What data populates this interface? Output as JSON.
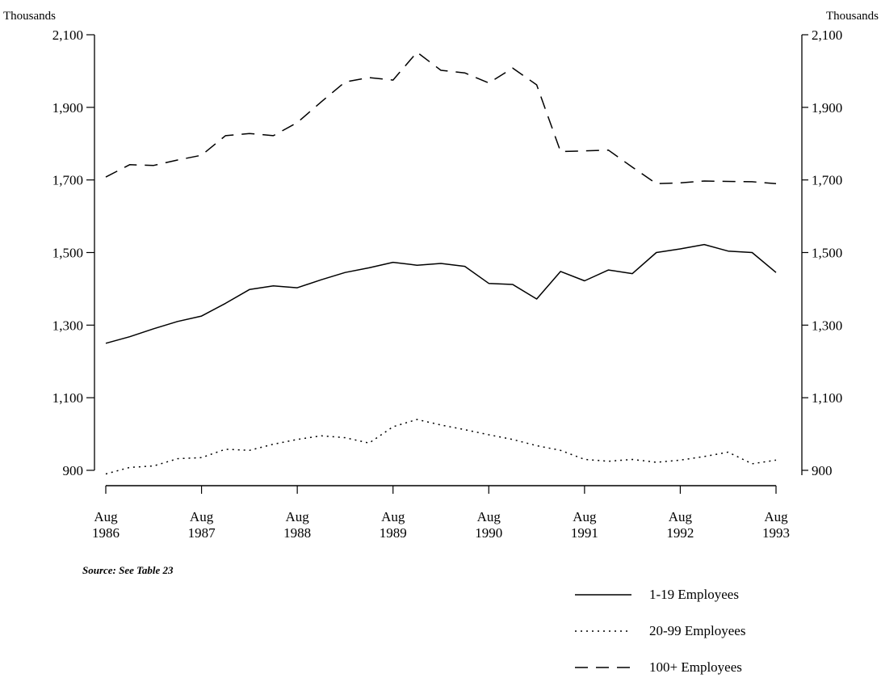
{
  "chart_data": {
    "type": "line",
    "unit_left": "Thousands",
    "unit_right": "Thousands",
    "source": "Source: See Table 23",
    "y_ticks": [
      "900",
      "1,100",
      "1,300",
      "1,500",
      "1,700",
      "1,900",
      "2,100"
    ],
    "y_tick_values": [
      900,
      1100,
      1300,
      1500,
      1700,
      1900,
      2100
    ],
    "ylim": [
      900,
      2100
    ],
    "x_ticks": [
      {
        "month": "Aug",
        "year": "1986",
        "t": 0
      },
      {
        "month": "Aug",
        "year": "1987",
        "t": 1
      },
      {
        "month": "Aug",
        "year": "1988",
        "t": 2
      },
      {
        "month": "Aug",
        "year": "1989",
        "t": 3
      },
      {
        "month": "Aug",
        "year": "1990",
        "t": 4
      },
      {
        "month": "Aug",
        "year": "1991",
        "t": 5
      },
      {
        "month": "Aug",
        "year": "1992",
        "t": 6
      },
      {
        "month": "Aug",
        "year": "1993",
        "t": 7
      }
    ],
    "xlim": [
      0,
      7
    ],
    "grid": false,
    "legend_position": "bottom-right",
    "series": [
      {
        "name": "1-19 Employees",
        "style": "solid",
        "values": [
          [
            0,
            1250
          ],
          [
            0.25,
            1268
          ],
          [
            0.5,
            1290
          ],
          [
            0.75,
            1310
          ],
          [
            1,
            1325
          ],
          [
            1.25,
            1360
          ],
          [
            1.5,
            1398
          ],
          [
            1.75,
            1408
          ],
          [
            2,
            1403
          ],
          [
            2.25,
            1425
          ],
          [
            2.5,
            1445
          ],
          [
            2.75,
            1458
          ],
          [
            3,
            1473
          ],
          [
            3.25,
            1465
          ],
          [
            3.5,
            1470
          ],
          [
            3.75,
            1462
          ],
          [
            4,
            1415
          ],
          [
            4.25,
            1412
          ],
          [
            4.5,
            1372
          ],
          [
            4.75,
            1448
          ],
          [
            5,
            1422
          ],
          [
            5.25,
            1452
          ],
          [
            5.5,
            1442
          ],
          [
            5.75,
            1500
          ],
          [
            6,
            1510
          ],
          [
            6.25,
            1522
          ],
          [
            6.5,
            1504
          ],
          [
            6.75,
            1500
          ],
          [
            7,
            1445
          ]
        ]
      },
      {
        "name": "20-99 Employees",
        "style": "dotted",
        "values": [
          [
            0,
            890
          ],
          [
            0.25,
            908
          ],
          [
            0.5,
            912
          ],
          [
            0.75,
            932
          ],
          [
            1,
            935
          ],
          [
            1.25,
            958
          ],
          [
            1.5,
            955
          ],
          [
            1.75,
            972
          ],
          [
            2,
            985
          ],
          [
            2.25,
            995
          ],
          [
            2.5,
            990
          ],
          [
            2.75,
            975
          ],
          [
            3,
            1020
          ],
          [
            3.25,
            1040
          ],
          [
            3.5,
            1025
          ],
          [
            3.75,
            1012
          ],
          [
            4,
            998
          ],
          [
            4.25,
            985
          ],
          [
            4.5,
            968
          ],
          [
            4.75,
            955
          ],
          [
            5,
            930
          ],
          [
            5.25,
            925
          ],
          [
            5.5,
            930
          ],
          [
            5.75,
            922
          ],
          [
            6,
            928
          ],
          [
            6.25,
            938
          ],
          [
            6.5,
            950
          ],
          [
            6.75,
            918
          ],
          [
            7,
            928
          ]
        ]
      },
      {
        "name": "100+ Employees",
        "style": "dashed",
        "values": [
          [
            0,
            1708
          ],
          [
            0.25,
            1742
          ],
          [
            0.5,
            1740
          ],
          [
            0.75,
            1755
          ],
          [
            1,
            1768
          ],
          [
            1.25,
            1822
          ],
          [
            1.5,
            1828
          ],
          [
            1.75,
            1822
          ],
          [
            2,
            1858
          ],
          [
            2.25,
            1915
          ],
          [
            2.5,
            1970
          ],
          [
            2.75,
            1982
          ],
          [
            3,
            1975
          ],
          [
            3.25,
            2052
          ],
          [
            3.5,
            2002
          ],
          [
            3.75,
            1995
          ],
          [
            4,
            1967
          ],
          [
            4.25,
            2008
          ],
          [
            4.5,
            1962
          ],
          [
            4.75,
            1778
          ],
          [
            5,
            1780
          ],
          [
            5.25,
            1782
          ],
          [
            5.5,
            1735
          ],
          [
            5.75,
            1690
          ],
          [
            6,
            1692
          ],
          [
            6.25,
            1697
          ],
          [
            6.5,
            1696
          ],
          [
            6.75,
            1695
          ],
          [
            7,
            1690
          ]
        ]
      }
    ]
  }
}
